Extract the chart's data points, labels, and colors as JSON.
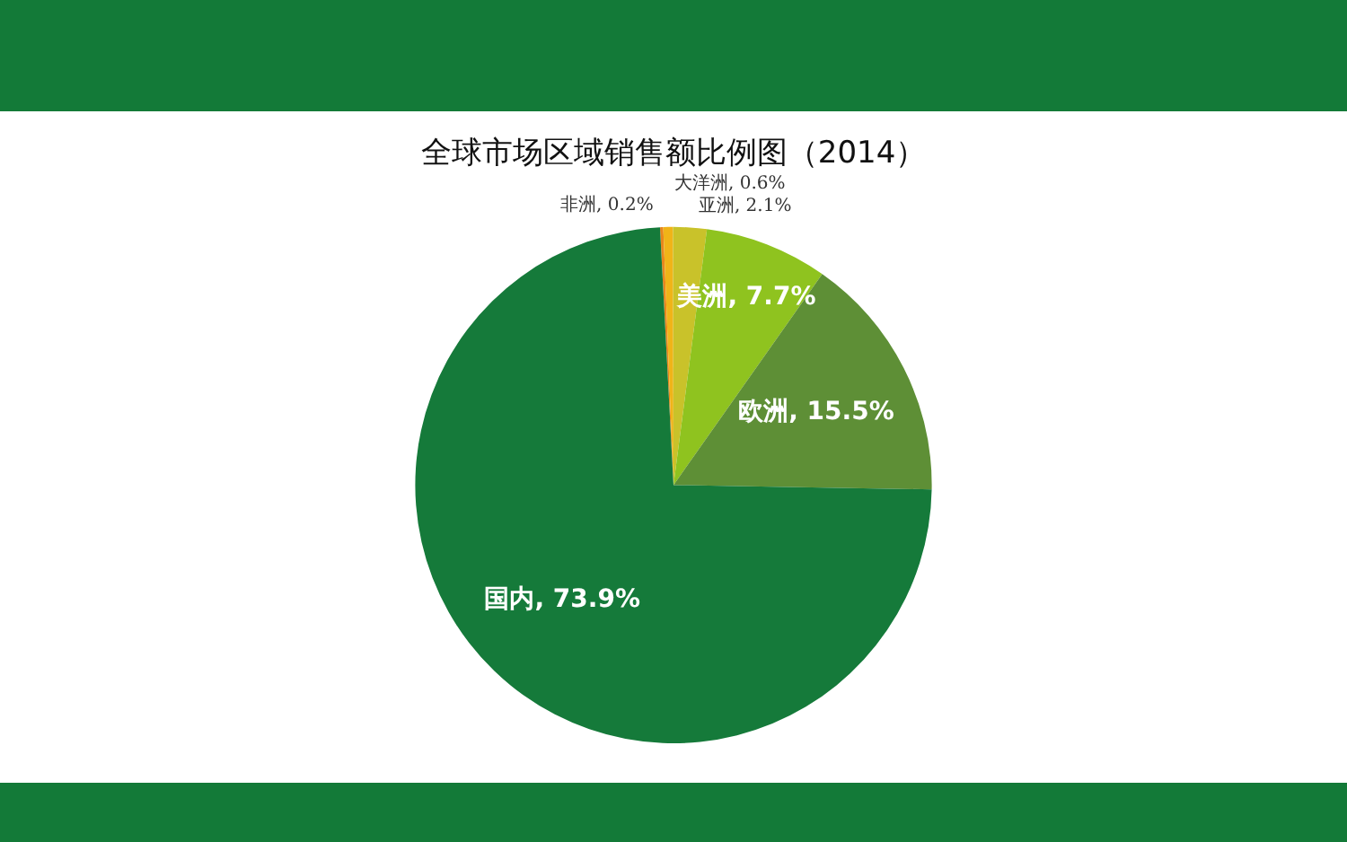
{
  "chart_data": {
    "type": "pie",
    "title": "全球市场区域销售额比例图（2014）",
    "categories": [
      "非洲",
      "大洋洲",
      "亚洲",
      "美洲",
      "欧洲",
      "国内"
    ],
    "values": [
      0.2,
      0.6,
      2.1,
      7.7,
      15.5,
      73.9
    ],
    "value_labels": [
      "0.2%",
      "0.6%",
      "2.1%",
      "7.7%",
      "15.5%",
      "73.9%"
    ],
    "colors": [
      "#e8861c",
      "#f0b418",
      "#c9c22a",
      "#8fc31f",
      "#5e8f36",
      "#157a3a"
    ],
    "legend": false
  }
}
